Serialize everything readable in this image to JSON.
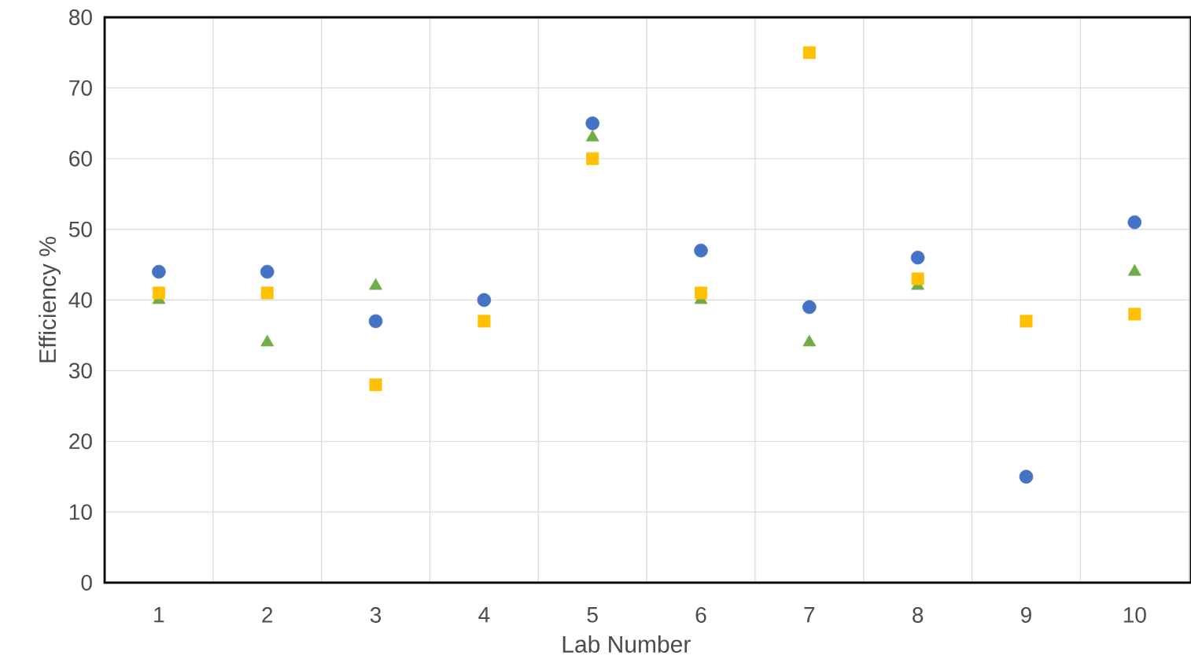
{
  "chart_data": {
    "type": "scatter",
    "xlabel": "Lab Number",
    "ylabel": "Efficiency %",
    "categories": [
      "1",
      "2",
      "3",
      "4",
      "5",
      "6",
      "7",
      "8",
      "9",
      "10"
    ],
    "ylim": [
      0,
      80
    ],
    "yticks": [
      0,
      10,
      20,
      30,
      40,
      50,
      60,
      70,
      80
    ],
    "grid": true,
    "legend": false,
    "series": [
      {
        "color": "#4472c4",
        "marker": "circle",
        "values": [
          44,
          44,
          37,
          40,
          65,
          47,
          39,
          46,
          15,
          51
        ]
      },
      {
        "color": "#70ad47",
        "marker": "triangle",
        "values": [
          40,
          34,
          42,
          null,
          63,
          40,
          34,
          42,
          null,
          44
        ]
      },
      {
        "color": "#ffc000",
        "marker": "square",
        "values": [
          41,
          41,
          28,
          37,
          60,
          41,
          75,
          43,
          37,
          38
        ]
      }
    ]
  }
}
